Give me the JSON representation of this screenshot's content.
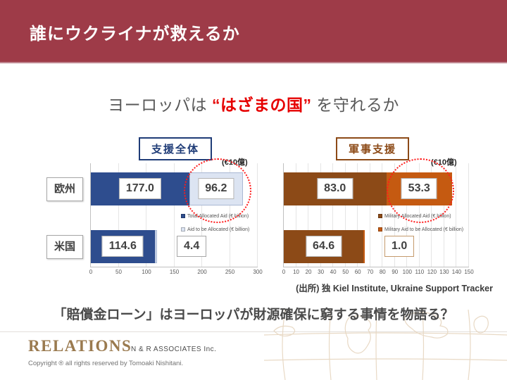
{
  "header": {
    "title": "誰にウクライナが救えるか",
    "bg_color": "#9e3b48"
  },
  "subtitle": {
    "prefix": "ヨーロッパは ",
    "highlight": "“はざまの国”",
    "suffix": " を守れるか",
    "highlight_color": "#e60000"
  },
  "chart_data": [
    {
      "type": "bar",
      "orientation": "horizontal",
      "title": "支援全体",
      "title_color": "#1f3c77",
      "unit_label": "(€10億)",
      "categories": [
        "欧州",
        "米国"
      ],
      "series": [
        {
          "name": "Total Allocated Aid (€ billion)",
          "color": "#2e4d8e",
          "values": [
            177.0,
            114.6
          ]
        },
        {
          "name": "Aid to be Allocated (€ billion)",
          "color": "#dce4f2",
          "border": "#a9b8d4",
          "values": [
            96.2,
            4.4
          ]
        }
      ],
      "xlim": [
        0,
        300
      ],
      "xticks": [
        0,
        50,
        100,
        150,
        200,
        250,
        300
      ],
      "grid": true,
      "legend_position": "inside-right",
      "float_label_border": "#a6a6a6",
      "highlight_annotation": {
        "row": 0,
        "segment": 1,
        "style": "red-dotted-circle"
      }
    },
    {
      "type": "bar",
      "orientation": "horizontal",
      "title": "軍事支援",
      "title_color": "#8c4a17",
      "unit_label": "(€10億)",
      "categories": [
        "欧州",
        "米国"
      ],
      "series": [
        {
          "name": "Military Allocated Aid (€ billion)",
          "color": "#8c4a17",
          "values": [
            83.0,
            64.6
          ]
        },
        {
          "name": "Military Aid to be Allocated (€ billion)",
          "color": "#c55a11",
          "values": [
            53.3,
            1.0
          ]
        }
      ],
      "xlim": [
        0,
        150
      ],
      "xticks": [
        0,
        10,
        20,
        30,
        40,
        50,
        60,
        70,
        80,
        90,
        100,
        110,
        120,
        130,
        140,
        150
      ],
      "grid": true,
      "legend_position": "inside-right",
      "float_label_border": "#c49a6c",
      "highlight_annotation": {
        "row": 0,
        "segment": 1,
        "style": "red-dotted-circle"
      }
    }
  ],
  "source_note": "(出所) 独 Kiel Institute, Ukraine Support Tracker",
  "message": "「賠償金ローン」はヨーロッパが財源確保に窮する事情を物語る？",
  "footer": {
    "brand": "RELATIONS",
    "company": "N & R  ASSOCIATES Inc.",
    "copyright": "Copyright ® all rights reserved by Tomoaki Nishitani."
  }
}
